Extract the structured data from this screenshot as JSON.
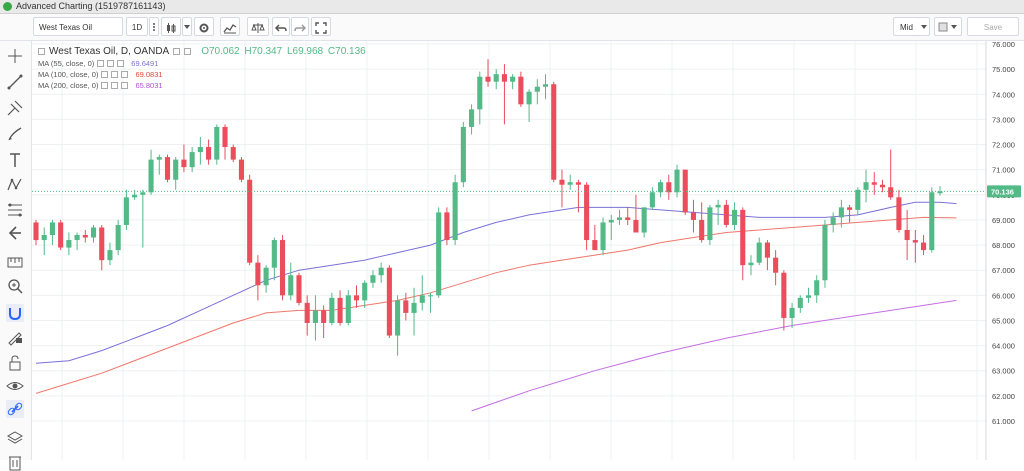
{
  "window": {
    "title": "Advanced Charting (1519787161143)"
  },
  "toolbar": {
    "symbol": "West Texas Oil",
    "interval": "1D",
    "price_type": "Mid",
    "save_label": "Save"
  },
  "legend": {
    "symbol_line": "West Texas Oil, D, OANDA",
    "open": "O70.062",
    "high": "H70.347",
    "low": "L69.968",
    "close": "C70.136",
    "ma55_label": "MA (55, close, 0)",
    "ma55_value": "69.6491",
    "ma100_label": "MA (100, close, 0)",
    "ma100_value": "69.0831",
    "ma200_label": "MA (200, close, 0)",
    "ma200_value": "65.8031"
  },
  "colors": {
    "up": "#53b987",
    "down": "#eb4d5c",
    "ma55": "#7b71d8",
    "ma100": "#f0766a",
    "ma200": "#c56ee3",
    "price_tag": "#53b987"
  },
  "chart_data": {
    "type": "candlestick",
    "ylim": [
      60.5,
      76.1
    ],
    "y_ticks": [
      "76.000",
      "75.000",
      "74.000",
      "73.000",
      "72.000",
      "71.000",
      "70.000",
      "69.000",
      "68.000",
      "67.000",
      "66.000",
      "65.000",
      "64.000",
      "63.000",
      "62.000",
      "61.000"
    ],
    "last_price": "70.136",
    "candles": [
      {
        "o": 68.9,
        "h": 69.0,
        "l": 68.0,
        "c": 68.2
      },
      {
        "o": 68.2,
        "h": 68.7,
        "l": 67.6,
        "c": 68.4
      },
      {
        "o": 68.4,
        "h": 69.0,
        "l": 68.0,
        "c": 68.9
      },
      {
        "o": 68.9,
        "h": 69.0,
        "l": 67.8,
        "c": 67.9
      },
      {
        "o": 67.9,
        "h": 68.5,
        "l": 67.6,
        "c": 68.2
      },
      {
        "o": 68.2,
        "h": 68.5,
        "l": 67.8,
        "c": 68.4
      },
      {
        "o": 68.4,
        "h": 68.6,
        "l": 68.1,
        "c": 68.3
      },
      {
        "o": 68.3,
        "h": 68.8,
        "l": 68.1,
        "c": 68.7
      },
      {
        "o": 68.7,
        "h": 68.8,
        "l": 67.0,
        "c": 67.4
      },
      {
        "o": 67.4,
        "h": 68.1,
        "l": 67.2,
        "c": 67.8
      },
      {
        "o": 67.8,
        "h": 69.0,
        "l": 67.6,
        "c": 68.8
      },
      {
        "o": 68.8,
        "h": 70.2,
        "l": 68.6,
        "c": 69.9
      },
      {
        "o": 69.9,
        "h": 70.2,
        "l": 69.8,
        "c": 70.0
      },
      {
        "o": 70.0,
        "h": 70.2,
        "l": 67.9,
        "c": 70.1
      },
      {
        "o": 70.1,
        "h": 71.8,
        "l": 70.0,
        "c": 71.4
      },
      {
        "o": 71.4,
        "h": 71.6,
        "l": 70.8,
        "c": 71.5
      },
      {
        "o": 71.5,
        "h": 71.6,
        "l": 70.5,
        "c": 70.6
      },
      {
        "o": 70.6,
        "h": 71.5,
        "l": 70.2,
        "c": 71.4
      },
      {
        "o": 71.4,
        "h": 72.0,
        "l": 70.9,
        "c": 71.1
      },
      {
        "o": 71.1,
        "h": 71.9,
        "l": 70.9,
        "c": 71.7
      },
      {
        "o": 71.7,
        "h": 72.3,
        "l": 71.2,
        "c": 71.9
      },
      {
        "o": 71.9,
        "h": 72.2,
        "l": 71.2,
        "c": 71.4
      },
      {
        "o": 71.4,
        "h": 72.8,
        "l": 71.2,
        "c": 72.7
      },
      {
        "o": 72.7,
        "h": 72.8,
        "l": 71.4,
        "c": 71.9
      },
      {
        "o": 71.9,
        "h": 72.0,
        "l": 71.3,
        "c": 71.4
      },
      {
        "o": 71.4,
        "h": 71.5,
        "l": 70.5,
        "c": 70.6
      },
      {
        "o": 70.6,
        "h": 70.8,
        "l": 67.2,
        "c": 67.3
      },
      {
        "o": 67.3,
        "h": 67.6,
        "l": 65.8,
        "c": 66.4
      },
      {
        "o": 66.4,
        "h": 67.2,
        "l": 66.1,
        "c": 67.1
      },
      {
        "o": 67.1,
        "h": 68.3,
        "l": 66.6,
        "c": 68.2
      },
      {
        "o": 68.2,
        "h": 68.4,
        "l": 65.8,
        "c": 66.0
      },
      {
        "o": 66.0,
        "h": 67.3,
        "l": 65.8,
        "c": 66.8
      },
      {
        "o": 66.8,
        "h": 66.9,
        "l": 65.6,
        "c": 65.7
      },
      {
        "o": 65.7,
        "h": 66.0,
        "l": 64.4,
        "c": 64.9
      },
      {
        "o": 64.9,
        "h": 66.0,
        "l": 64.2,
        "c": 65.4
      },
      {
        "o": 65.4,
        "h": 65.6,
        "l": 64.3,
        "c": 64.9
      },
      {
        "o": 64.9,
        "h": 66.1,
        "l": 64.8,
        "c": 65.9
      },
      {
        "o": 65.9,
        "h": 66.2,
        "l": 64.8,
        "c": 64.9
      },
      {
        "o": 64.9,
        "h": 66.2,
        "l": 64.8,
        "c": 66.0
      },
      {
        "o": 66.0,
        "h": 66.4,
        "l": 65.5,
        "c": 65.8
      },
      {
        "o": 65.8,
        "h": 66.6,
        "l": 65.5,
        "c": 66.5
      },
      {
        "o": 66.5,
        "h": 67.0,
        "l": 66.3,
        "c": 66.8
      },
      {
        "o": 66.8,
        "h": 67.3,
        "l": 66.5,
        "c": 67.1
      },
      {
        "o": 67.1,
        "h": 67.2,
        "l": 64.3,
        "c": 64.4
      },
      {
        "o": 64.4,
        "h": 66.0,
        "l": 63.6,
        "c": 65.8
      },
      {
        "o": 65.8,
        "h": 66.1,
        "l": 65.0,
        "c": 65.3
      },
      {
        "o": 65.3,
        "h": 66.3,
        "l": 64.4,
        "c": 65.7
      },
      {
        "o": 65.7,
        "h": 66.8,
        "l": 65.4,
        "c": 66.0
      },
      {
        "o": 66.0,
        "h": 66.1,
        "l": 65.3,
        "c": 66.0
      },
      {
        "o": 66.0,
        "h": 69.5,
        "l": 65.9,
        "c": 69.3
      },
      {
        "o": 69.3,
        "h": 69.5,
        "l": 68.0,
        "c": 68.2
      },
      {
        "o": 68.2,
        "h": 70.8,
        "l": 68.0,
        "c": 70.5
      },
      {
        "o": 70.5,
        "h": 72.9,
        "l": 70.3,
        "c": 72.7
      },
      {
        "o": 72.7,
        "h": 73.6,
        "l": 72.4,
        "c": 73.4
      },
      {
        "o": 73.4,
        "h": 74.9,
        "l": 72.8,
        "c": 74.7
      },
      {
        "o": 74.7,
        "h": 75.4,
        "l": 74.3,
        "c": 74.5
      },
      {
        "o": 74.5,
        "h": 75.0,
        "l": 74.2,
        "c": 74.8
      },
      {
        "o": 74.8,
        "h": 75.2,
        "l": 72.8,
        "c": 74.5
      },
      {
        "o": 74.5,
        "h": 74.8,
        "l": 74.2,
        "c": 74.7
      },
      {
        "o": 74.7,
        "h": 74.9,
        "l": 73.5,
        "c": 73.6
      },
      {
        "o": 73.6,
        "h": 74.2,
        "l": 72.9,
        "c": 74.1
      },
      {
        "o": 74.1,
        "h": 74.6,
        "l": 73.6,
        "c": 74.3
      },
      {
        "o": 74.3,
        "h": 74.8,
        "l": 73.8,
        "c": 74.4
      },
      {
        "o": 74.4,
        "h": 74.5,
        "l": 70.5,
        "c": 70.6
      },
      {
        "o": 70.6,
        "h": 71.0,
        "l": 69.5,
        "c": 70.4
      },
      {
        "o": 70.4,
        "h": 70.8,
        "l": 70.2,
        "c": 70.5
      },
      {
        "o": 70.5,
        "h": 70.6,
        "l": 69.3,
        "c": 70.4
      },
      {
        "o": 70.4,
        "h": 70.5,
        "l": 67.8,
        "c": 68.2
      },
      {
        "o": 68.2,
        "h": 68.8,
        "l": 67.8,
        "c": 67.8
      },
      {
        "o": 67.8,
        "h": 69.1,
        "l": 67.6,
        "c": 68.9
      },
      {
        "o": 68.9,
        "h": 69.2,
        "l": 68.2,
        "c": 69.0
      },
      {
        "o": 69.0,
        "h": 69.4,
        "l": 68.8,
        "c": 69.1
      },
      {
        "o": 69.1,
        "h": 69.5,
        "l": 68.8,
        "c": 69.0
      },
      {
        "o": 69.0,
        "h": 70.0,
        "l": 68.5,
        "c": 68.5
      },
      {
        "o": 68.5,
        "h": 69.5,
        "l": 68.3,
        "c": 69.5
      },
      {
        "o": 69.5,
        "h": 70.3,
        "l": 69.4,
        "c": 70.1
      },
      {
        "o": 70.1,
        "h": 70.6,
        "l": 69.9,
        "c": 70.5
      },
      {
        "o": 70.5,
        "h": 70.8,
        "l": 69.8,
        "c": 70.1
      },
      {
        "o": 70.1,
        "h": 71.2,
        "l": 69.9,
        "c": 71.0
      },
      {
        "o": 71.0,
        "h": 71.0,
        "l": 69.2,
        "c": 69.3
      },
      {
        "o": 69.3,
        "h": 69.8,
        "l": 68.5,
        "c": 69.0
      },
      {
        "o": 69.0,
        "h": 69.7,
        "l": 68.1,
        "c": 68.2
      },
      {
        "o": 68.2,
        "h": 69.6,
        "l": 68.0,
        "c": 69.5
      },
      {
        "o": 69.5,
        "h": 69.8,
        "l": 68.8,
        "c": 69.6
      },
      {
        "o": 69.6,
        "h": 69.8,
        "l": 68.7,
        "c": 68.8
      },
      {
        "o": 68.8,
        "h": 69.7,
        "l": 68.6,
        "c": 69.4
      },
      {
        "o": 69.4,
        "h": 69.5,
        "l": 66.6,
        "c": 67.2
      },
      {
        "o": 67.2,
        "h": 67.6,
        "l": 66.8,
        "c": 67.3
      },
      {
        "o": 67.3,
        "h": 68.3,
        "l": 67.2,
        "c": 68.1
      },
      {
        "o": 68.1,
        "h": 68.2,
        "l": 67.0,
        "c": 67.5
      },
      {
        "o": 67.5,
        "h": 67.8,
        "l": 66.4,
        "c": 66.9
      },
      {
        "o": 66.9,
        "h": 67.0,
        "l": 64.6,
        "c": 65.1
      },
      {
        "o": 65.1,
        "h": 65.7,
        "l": 64.7,
        "c": 65.5
      },
      {
        "o": 65.5,
        "h": 66.0,
        "l": 65.3,
        "c": 65.9
      },
      {
        "o": 65.9,
        "h": 66.3,
        "l": 65.7,
        "c": 66.0
      },
      {
        "o": 66.0,
        "h": 66.8,
        "l": 65.7,
        "c": 66.6
      },
      {
        "o": 66.6,
        "h": 69.0,
        "l": 66.3,
        "c": 68.8
      },
      {
        "o": 68.8,
        "h": 69.3,
        "l": 68.5,
        "c": 69.1
      },
      {
        "o": 69.1,
        "h": 69.8,
        "l": 68.7,
        "c": 69.5
      },
      {
        "o": 69.5,
        "h": 69.6,
        "l": 68.9,
        "c": 69.4
      },
      {
        "o": 69.4,
        "h": 70.3,
        "l": 69.2,
        "c": 70.2
      },
      {
        "o": 70.2,
        "h": 71.0,
        "l": 69.7,
        "c": 70.5
      },
      {
        "o": 70.5,
        "h": 70.9,
        "l": 70.0,
        "c": 70.4
      },
      {
        "o": 70.4,
        "h": 70.6,
        "l": 70.1,
        "c": 70.3
      },
      {
        "o": 70.3,
        "h": 71.8,
        "l": 69.8,
        "c": 69.9
      },
      {
        "o": 69.9,
        "h": 70.2,
        "l": 68.5,
        "c": 68.6
      },
      {
        "o": 68.6,
        "h": 69.4,
        "l": 67.4,
        "c": 68.2
      },
      {
        "o": 68.2,
        "h": 68.6,
        "l": 67.3,
        "c": 68.1
      },
      {
        "o": 68.1,
        "h": 68.4,
        "l": 67.6,
        "c": 67.8
      },
      {
        "o": 67.8,
        "h": 70.3,
        "l": 67.7,
        "c": 70.1
      },
      {
        "o": 70.062,
        "h": 70.347,
        "l": 69.968,
        "c": 70.136
      }
    ],
    "ma55": [
      [
        0,
        63.3
      ],
      [
        4,
        63.4
      ],
      [
        8,
        63.8
      ],
      [
        12,
        64.3
      ],
      [
        16,
        64.8
      ],
      [
        20,
        65.4
      ],
      [
        24,
        66.0
      ],
      [
        28,
        66.6
      ],
      [
        32,
        67.0
      ],
      [
        36,
        67.2
      ],
      [
        40,
        67.4
      ],
      [
        44,
        67.7
      ],
      [
        48,
        68.0
      ],
      [
        52,
        68.5
      ],
      [
        56,
        68.9
      ],
      [
        60,
        69.2
      ],
      [
        64,
        69.4
      ],
      [
        66,
        69.5
      ],
      [
        68,
        69.5
      ],
      [
        72,
        69.5
      ],
      [
        76,
        69.4
      ],
      [
        80,
        69.3
      ],
      [
        84,
        69.2
      ],
      [
        88,
        69.1
      ],
      [
        92,
        69.1
      ],
      [
        96,
        69.1
      ],
      [
        100,
        69.2
      ],
      [
        104,
        69.5
      ],
      [
        107,
        69.7
      ],
      [
        110,
        69.7
      ],
      [
        112,
        69.65
      ]
    ],
    "ma100": [
      [
        0,
        62.1
      ],
      [
        8,
        62.9
      ],
      [
        16,
        63.9
      ],
      [
        24,
        64.9
      ],
      [
        28,
        65.3
      ],
      [
        32,
        65.4
      ],
      [
        36,
        65.4
      ],
      [
        40,
        65.6
      ],
      [
        44,
        65.8
      ],
      [
        48,
        66.1
      ],
      [
        52,
        66.5
      ],
      [
        56,
        66.9
      ],
      [
        60,
        67.2
      ],
      [
        64,
        67.4
      ],
      [
        68,
        67.6
      ],
      [
        72,
        67.8
      ],
      [
        76,
        68.1
      ],
      [
        80,
        68.3
      ],
      [
        84,
        68.5
      ],
      [
        88,
        68.6
      ],
      [
        92,
        68.7
      ],
      [
        96,
        68.8
      ],
      [
        100,
        68.9
      ],
      [
        104,
        69.0
      ],
      [
        108,
        69.1
      ],
      [
        112,
        69.08
      ]
    ],
    "ma200": [
      [
        53,
        61.4
      ],
      [
        60,
        62.2
      ],
      [
        68,
        63.0
      ],
      [
        76,
        63.7
      ],
      [
        84,
        64.3
      ],
      [
        92,
        64.8
      ],
      [
        100,
        65.2
      ],
      [
        108,
        65.6
      ],
      [
        112,
        65.8
      ]
    ]
  }
}
